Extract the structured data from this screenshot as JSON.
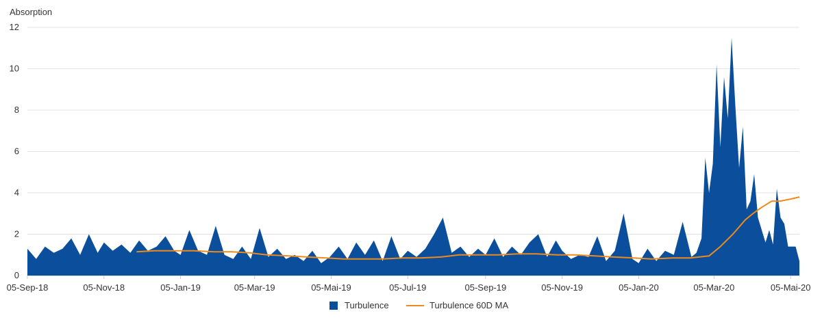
{
  "chart_data": {
    "type": "area",
    "ylabel": "Absorption",
    "ylim": [
      0,
      12
    ],
    "y_ticks": [
      0,
      2,
      4,
      6,
      8,
      10,
      12
    ],
    "x_range": [
      "2018-09-05",
      "2020-05-12"
    ],
    "x_ticks": [
      "05-Sep-18",
      "05-Nov-18",
      "05-Jan-19",
      "05-Mar-19",
      "05-Mai-19",
      "05-Jul-19",
      "05-Sep-19",
      "05-Nov-19",
      "05-Jan-20",
      "05-Mar-20",
      "05-Mai-20"
    ],
    "x_tick_dates": [
      "2018-09-05",
      "2018-11-05",
      "2019-01-05",
      "2019-03-05",
      "2019-05-05",
      "2019-07-05",
      "2019-09-05",
      "2019-11-05",
      "2020-01-05",
      "2020-03-05",
      "2020-05-05"
    ],
    "grid": "horizontal",
    "legend": "bottom-center",
    "series": [
      {
        "name": "Turbulence",
        "style": "area",
        "color": "#0b4f9c",
        "x": [
          "2018-09-05",
          "2018-09-12",
          "2018-09-19",
          "2018-09-26",
          "2018-10-03",
          "2018-10-10",
          "2018-10-17",
          "2018-10-24",
          "2018-10-31",
          "2018-11-05",
          "2018-11-12",
          "2018-11-19",
          "2018-11-26",
          "2018-12-03",
          "2018-12-10",
          "2018-12-17",
          "2018-12-24",
          "2018-12-31",
          "2019-01-05",
          "2019-01-12",
          "2019-01-19",
          "2019-01-26",
          "2019-02-02",
          "2019-02-09",
          "2019-02-16",
          "2019-02-23",
          "2019-03-02",
          "2019-03-09",
          "2019-03-16",
          "2019-03-23",
          "2019-03-30",
          "2019-04-06",
          "2019-04-13",
          "2019-04-20",
          "2019-04-27",
          "2019-05-04",
          "2019-05-11",
          "2019-05-18",
          "2019-05-25",
          "2019-06-01",
          "2019-06-08",
          "2019-06-15",
          "2019-06-22",
          "2019-06-29",
          "2019-07-05",
          "2019-07-12",
          "2019-07-19",
          "2019-07-26",
          "2019-08-02",
          "2019-08-09",
          "2019-08-16",
          "2019-08-23",
          "2019-08-30",
          "2019-09-05",
          "2019-09-12",
          "2019-09-19",
          "2019-09-26",
          "2019-10-03",
          "2019-10-10",
          "2019-10-17",
          "2019-10-24",
          "2019-10-31",
          "2019-11-05",
          "2019-11-12",
          "2019-11-19",
          "2019-11-26",
          "2019-12-03",
          "2019-12-10",
          "2019-12-17",
          "2019-12-24",
          "2019-12-31",
          "2020-01-05",
          "2020-01-12",
          "2020-01-19",
          "2020-01-26",
          "2020-02-02",
          "2020-02-09",
          "2020-02-16",
          "2020-02-20",
          "2020-02-24",
          "2020-02-27",
          "2020-03-01",
          "2020-03-04",
          "2020-03-07",
          "2020-03-10",
          "2020-03-13",
          "2020-03-16",
          "2020-03-19",
          "2020-03-22",
          "2020-03-25",
          "2020-03-28",
          "2020-03-31",
          "2020-04-03",
          "2020-04-06",
          "2020-04-09",
          "2020-04-12",
          "2020-04-15",
          "2020-04-18",
          "2020-04-21",
          "2020-04-24",
          "2020-04-27",
          "2020-04-30",
          "2020-05-03",
          "2020-05-06",
          "2020-05-09",
          "2020-05-12"
        ],
        "values": [
          1.3,
          0.8,
          1.4,
          1.1,
          1.3,
          1.8,
          1.0,
          2.0,
          1.1,
          1.6,
          1.2,
          1.5,
          1.1,
          1.7,
          1.2,
          1.4,
          1.9,
          1.2,
          1.0,
          2.2,
          1.2,
          1.0,
          2.4,
          1.0,
          0.8,
          1.4,
          0.8,
          2.3,
          0.9,
          1.3,
          0.8,
          1.0,
          0.7,
          1.2,
          0.6,
          0.9,
          1.4,
          0.8,
          1.6,
          1.0,
          1.7,
          0.7,
          1.9,
          0.8,
          1.2,
          0.9,
          1.3,
          2.0,
          2.8,
          1.1,
          1.4,
          0.9,
          1.3,
          1.0,
          1.8,
          0.9,
          1.4,
          1.0,
          1.6,
          2.0,
          0.9,
          1.7,
          1.2,
          0.8,
          1.0,
          0.9,
          1.9,
          0.7,
          1.2,
          3.0,
          0.8,
          0.6,
          1.3,
          0.7,
          1.2,
          1.0,
          2.6,
          0.9,
          1.1,
          1.8,
          5.7,
          4.0,
          5.4,
          10.2,
          6.2,
          9.6,
          7.6,
          11.5,
          8.2,
          5.2,
          7.2,
          3.2,
          3.6,
          4.9,
          2.8,
          2.2,
          1.6,
          2.2,
          1.5,
          4.2,
          2.8,
          2.5,
          1.4,
          1.4,
          1.4,
          0.7
        ]
      },
      {
        "name": "Turbulence 60D MA",
        "style": "line",
        "color": "#ee8a1b",
        "x": [
          "2018-12-01",
          "2018-12-15",
          "2019-01-01",
          "2019-01-15",
          "2019-02-01",
          "2019-02-15",
          "2019-03-01",
          "2019-03-15",
          "2019-04-01",
          "2019-04-15",
          "2019-05-01",
          "2019-05-15",
          "2019-06-01",
          "2019-06-15",
          "2019-07-01",
          "2019-07-15",
          "2019-08-01",
          "2019-08-15",
          "2019-09-01",
          "2019-09-15",
          "2019-10-01",
          "2019-10-15",
          "2019-11-01",
          "2019-11-15",
          "2019-12-01",
          "2019-12-15",
          "2020-01-01",
          "2020-01-15",
          "2020-02-01",
          "2020-02-15",
          "2020-03-01",
          "2020-03-10",
          "2020-03-20",
          "2020-03-30",
          "2020-04-05",
          "2020-04-12",
          "2020-04-20",
          "2020-04-27",
          "2020-05-05",
          "2020-05-12"
        ],
        "values": [
          1.15,
          1.2,
          1.2,
          1.2,
          1.15,
          1.15,
          1.1,
          1.0,
          0.95,
          0.9,
          0.85,
          0.8,
          0.8,
          0.8,
          0.85,
          0.85,
          0.9,
          1.0,
          1.0,
          1.0,
          1.05,
          1.05,
          1.0,
          1.0,
          0.95,
          0.9,
          0.85,
          0.8,
          0.85,
          0.85,
          0.95,
          1.4,
          2.0,
          2.7,
          3.0,
          3.3,
          3.6,
          3.6,
          3.7,
          3.8
        ]
      }
    ]
  }
}
